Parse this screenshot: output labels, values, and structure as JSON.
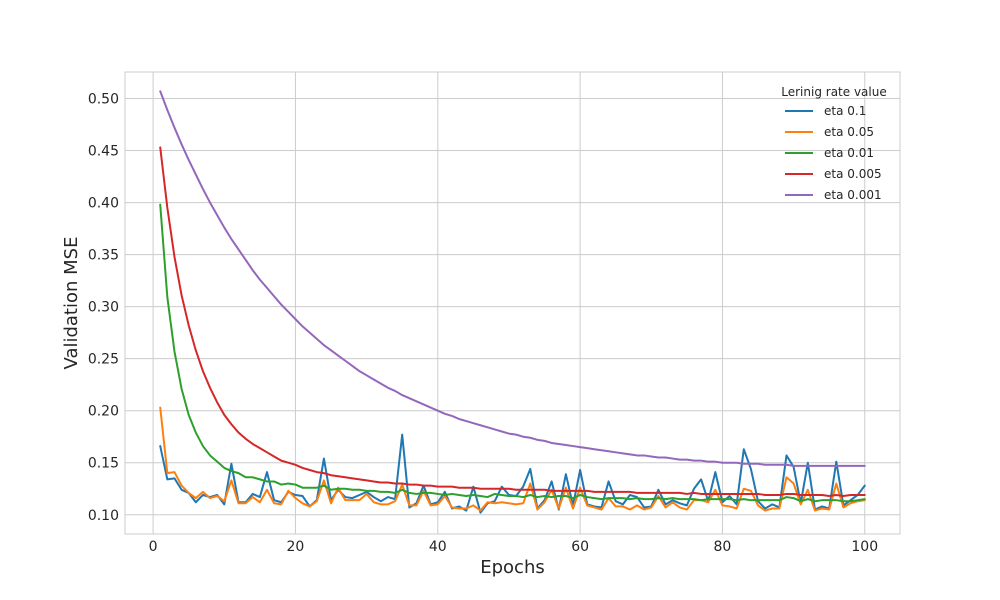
{
  "chart_data": {
    "type": "line",
    "title": "",
    "xlabel": "Epochs",
    "ylabel": "Validation MSE",
    "xlim": [
      -3.95,
      104.95
    ],
    "ylim": [
      0.0815,
      0.5255
    ],
    "x_ticks": [
      0,
      20,
      40,
      60,
      80,
      100
    ],
    "y_ticks": [
      0.1,
      0.15,
      0.2,
      0.25,
      0.3,
      0.35,
      0.4,
      0.45,
      0.5
    ],
    "grid": true,
    "legend": {
      "title": "Lerinig rate value",
      "placement": "top-right"
    },
    "series": [
      {
        "name": "eta 0.1",
        "color": "#1f77b4",
        "x": [
          1,
          2,
          3,
          4,
          5,
          6,
          7,
          8,
          9,
          10,
          11,
          12,
          13,
          14,
          15,
          16,
          17,
          18,
          19,
          20,
          21,
          22,
          23,
          24,
          25,
          26,
          27,
          28,
          29,
          30,
          31,
          32,
          33,
          34,
          35,
          36,
          37,
          38,
          39,
          40,
          41,
          42,
          43,
          44,
          45,
          46,
          47,
          48,
          49,
          50,
          51,
          52,
          53,
          54,
          55,
          56,
          57,
          58,
          59,
          60,
          61,
          62,
          63,
          64,
          65,
          66,
          67,
          68,
          69,
          70,
          71,
          72,
          73,
          74,
          75,
          76,
          77,
          78,
          79,
          80,
          81,
          82,
          83,
          84,
          85,
          86,
          87,
          88,
          89,
          90,
          91,
          92,
          93,
          94,
          95,
          96,
          97,
          98,
          99,
          100
        ],
        "y": [
          0.166,
          0.134,
          0.135,
          0.124,
          0.121,
          0.112,
          0.119,
          0.117,
          0.119,
          0.11,
          0.149,
          0.112,
          0.112,
          0.12,
          0.117,
          0.141,
          0.114,
          0.112,
          0.122,
          0.119,
          0.118,
          0.108,
          0.114,
          0.154,
          0.114,
          0.124,
          0.117,
          0.116,
          0.119,
          0.122,
          0.117,
          0.113,
          0.117,
          0.115,
          0.177,
          0.107,
          0.111,
          0.128,
          0.11,
          0.112,
          0.122,
          0.106,
          0.108,
          0.104,
          0.127,
          0.102,
          0.111,
          0.113,
          0.127,
          0.119,
          0.118,
          0.127,
          0.144,
          0.106,
          0.114,
          0.132,
          0.105,
          0.139,
          0.109,
          0.143,
          0.11,
          0.108,
          0.107,
          0.132,
          0.113,
          0.11,
          0.119,
          0.117,
          0.107,
          0.108,
          0.124,
          0.11,
          0.114,
          0.111,
          0.109,
          0.125,
          0.134,
          0.113,
          0.141,
          0.112,
          0.118,
          0.11,
          0.163,
          0.144,
          0.113,
          0.106,
          0.11,
          0.107,
          0.157,
          0.146,
          0.111,
          0.15,
          0.105,
          0.108,
          0.106,
          0.151,
          0.109,
          0.114,
          0.119,
          0.128
        ]
      },
      {
        "name": "eta 0.05",
        "color": "#ff7f0e",
        "x": [
          1,
          2,
          3,
          4,
          5,
          6,
          7,
          8,
          9,
          10,
          11,
          12,
          13,
          14,
          15,
          16,
          17,
          18,
          19,
          20,
          21,
          22,
          23,
          24,
          25,
          26,
          27,
          28,
          29,
          30,
          31,
          32,
          33,
          34,
          35,
          36,
          37,
          38,
          39,
          40,
          41,
          42,
          43,
          44,
          45,
          46,
          47,
          48,
          49,
          50,
          51,
          52,
          53,
          54,
          55,
          56,
          57,
          58,
          59,
          60,
          61,
          62,
          63,
          64,
          65,
          66,
          67,
          68,
          69,
          70,
          71,
          72,
          73,
          74,
          75,
          76,
          77,
          78,
          79,
          80,
          81,
          82,
          83,
          84,
          85,
          86,
          87,
          88,
          89,
          90,
          91,
          92,
          93,
          94,
          95,
          96,
          97,
          98,
          99,
          100
        ],
        "y": [
          0.203,
          0.14,
          0.141,
          0.128,
          0.121,
          0.116,
          0.122,
          0.116,
          0.118,
          0.113,
          0.133,
          0.111,
          0.111,
          0.117,
          0.112,
          0.124,
          0.111,
          0.11,
          0.123,
          0.116,
          0.111,
          0.108,
          0.113,
          0.133,
          0.111,
          0.126,
          0.114,
          0.114,
          0.114,
          0.12,
          0.112,
          0.11,
          0.11,
          0.113,
          0.129,
          0.109,
          0.109,
          0.123,
          0.109,
          0.11,
          0.118,
          0.107,
          0.106,
          0.106,
          0.109,
          0.104,
          0.112,
          0.111,
          0.112,
          0.111,
          0.11,
          0.111,
          0.13,
          0.105,
          0.112,
          0.124,
          0.106,
          0.126,
          0.106,
          0.126,
          0.109,
          0.107,
          0.105,
          0.116,
          0.108,
          0.108,
          0.105,
          0.109,
          0.105,
          0.107,
          0.118,
          0.107,
          0.112,
          0.107,
          0.105,
          0.114,
          0.114,
          0.112,
          0.124,
          0.109,
          0.108,
          0.106,
          0.125,
          0.123,
          0.109,
          0.104,
          0.106,
          0.106,
          0.136,
          0.13,
          0.11,
          0.124,
          0.104,
          0.106,
          0.105,
          0.13,
          0.107,
          0.111,
          0.113,
          0.114
        ]
      },
      {
        "name": "eta 0.01",
        "color": "#2ca02c",
        "x": [
          1,
          2,
          3,
          4,
          5,
          6,
          7,
          8,
          9,
          10,
          11,
          12,
          13,
          14,
          15,
          16,
          17,
          18,
          19,
          20,
          21,
          22,
          23,
          24,
          25,
          26,
          27,
          28,
          29,
          30,
          31,
          32,
          33,
          34,
          35,
          36,
          37,
          38,
          39,
          40,
          41,
          42,
          43,
          44,
          45,
          46,
          47,
          48,
          49,
          50,
          51,
          52,
          53,
          54,
          55,
          56,
          57,
          58,
          59,
          60,
          61,
          62,
          63,
          64,
          65,
          66,
          67,
          68,
          69,
          70,
          71,
          72,
          73,
          74,
          75,
          76,
          77,
          78,
          79,
          80,
          81,
          82,
          83,
          84,
          85,
          86,
          87,
          88,
          89,
          90,
          91,
          92,
          93,
          94,
          95,
          96,
          97,
          98,
          99,
          100
        ],
        "y": [
          0.398,
          0.309,
          0.257,
          0.221,
          0.196,
          0.179,
          0.166,
          0.157,
          0.151,
          0.145,
          0.142,
          0.14,
          0.136,
          0.136,
          0.134,
          0.132,
          0.132,
          0.129,
          0.13,
          0.129,
          0.126,
          0.126,
          0.126,
          0.128,
          0.124,
          0.125,
          0.125,
          0.124,
          0.124,
          0.123,
          0.123,
          0.122,
          0.122,
          0.121,
          0.124,
          0.121,
          0.12,
          0.121,
          0.121,
          0.12,
          0.119,
          0.12,
          0.119,
          0.118,
          0.119,
          0.118,
          0.117,
          0.12,
          0.119,
          0.118,
          0.118,
          0.117,
          0.119,
          0.117,
          0.118,
          0.117,
          0.118,
          0.118,
          0.116,
          0.119,
          0.117,
          0.116,
          0.115,
          0.116,
          0.116,
          0.116,
          0.115,
          0.116,
          0.115,
          0.115,
          0.116,
          0.115,
          0.116,
          0.115,
          0.115,
          0.115,
          0.114,
          0.115,
          0.115,
          0.115,
          0.115,
          0.114,
          0.115,
          0.114,
          0.114,
          0.114,
          0.114,
          0.114,
          0.117,
          0.116,
          0.113,
          0.115,
          0.113,
          0.114,
          0.114,
          0.114,
          0.113,
          0.113,
          0.114,
          0.115
        ]
      },
      {
        "name": "eta 0.005",
        "color": "#d62728",
        "x": [
          1,
          2,
          3,
          4,
          5,
          6,
          7,
          8,
          9,
          10,
          11,
          12,
          13,
          14,
          15,
          16,
          17,
          18,
          19,
          20,
          21,
          22,
          23,
          24,
          25,
          26,
          27,
          28,
          29,
          30,
          31,
          32,
          33,
          34,
          35,
          36,
          37,
          38,
          39,
          40,
          41,
          42,
          43,
          44,
          45,
          46,
          47,
          48,
          49,
          50,
          51,
          52,
          53,
          54,
          55,
          56,
          57,
          58,
          59,
          60,
          61,
          62,
          63,
          64,
          65,
          66,
          67,
          68,
          69,
          70,
          71,
          72,
          73,
          74,
          75,
          76,
          77,
          78,
          79,
          80,
          81,
          82,
          83,
          84,
          85,
          86,
          87,
          88,
          89,
          90,
          91,
          92,
          93,
          94,
          95,
          96,
          97,
          98,
          99,
          100
        ],
        "y": [
          0.453,
          0.395,
          0.348,
          0.311,
          0.282,
          0.258,
          0.238,
          0.222,
          0.208,
          0.196,
          0.187,
          0.179,
          0.173,
          0.168,
          0.164,
          0.16,
          0.156,
          0.152,
          0.15,
          0.148,
          0.145,
          0.143,
          0.141,
          0.14,
          0.138,
          0.137,
          0.136,
          0.135,
          0.134,
          0.133,
          0.132,
          0.131,
          0.131,
          0.13,
          0.13,
          0.129,
          0.129,
          0.128,
          0.128,
          0.127,
          0.127,
          0.127,
          0.126,
          0.126,
          0.126,
          0.125,
          0.125,
          0.125,
          0.125,
          0.125,
          0.124,
          0.124,
          0.124,
          0.124,
          0.124,
          0.123,
          0.123,
          0.123,
          0.123,
          0.123,
          0.123,
          0.122,
          0.122,
          0.122,
          0.122,
          0.122,
          0.122,
          0.121,
          0.121,
          0.121,
          0.121,
          0.121,
          0.121,
          0.121,
          0.12,
          0.121,
          0.12,
          0.12,
          0.12,
          0.12,
          0.12,
          0.12,
          0.12,
          0.12,
          0.12,
          0.119,
          0.119,
          0.119,
          0.12,
          0.12,
          0.119,
          0.119,
          0.119,
          0.119,
          0.118,
          0.119,
          0.118,
          0.119,
          0.119,
          0.119
        ]
      },
      {
        "name": "eta 0.001",
        "color": "#9467bd",
        "x": [
          1,
          2,
          3,
          4,
          5,
          6,
          7,
          8,
          9,
          10,
          11,
          12,
          13,
          14,
          15,
          16,
          17,
          18,
          19,
          20,
          21,
          22,
          23,
          24,
          25,
          26,
          27,
          28,
          29,
          30,
          31,
          32,
          33,
          34,
          35,
          36,
          37,
          38,
          39,
          40,
          41,
          42,
          43,
          44,
          45,
          46,
          47,
          48,
          49,
          50,
          51,
          52,
          53,
          54,
          55,
          56,
          57,
          58,
          59,
          60,
          61,
          62,
          63,
          64,
          65,
          66,
          67,
          68,
          69,
          70,
          71,
          72,
          73,
          74,
          75,
          76,
          77,
          78,
          79,
          80,
          81,
          82,
          83,
          84,
          85,
          86,
          87,
          88,
          89,
          90,
          91,
          92,
          93,
          94,
          95,
          96,
          97,
          98,
          99,
          100
        ],
        "y": [
          0.507,
          0.489,
          0.472,
          0.456,
          0.441,
          0.427,
          0.413,
          0.4,
          0.388,
          0.376,
          0.365,
          0.355,
          0.345,
          0.335,
          0.326,
          0.318,
          0.31,
          0.302,
          0.295,
          0.288,
          0.281,
          0.275,
          0.269,
          0.263,
          0.258,
          0.253,
          0.248,
          0.243,
          0.238,
          0.234,
          0.23,
          0.226,
          0.222,
          0.219,
          0.215,
          0.212,
          0.209,
          0.206,
          0.203,
          0.2,
          0.197,
          0.195,
          0.192,
          0.19,
          0.188,
          0.186,
          0.184,
          0.182,
          0.18,
          0.178,
          0.177,
          0.175,
          0.174,
          0.172,
          0.171,
          0.169,
          0.168,
          0.167,
          0.166,
          0.165,
          0.164,
          0.163,
          0.162,
          0.161,
          0.16,
          0.159,
          0.158,
          0.157,
          0.157,
          0.156,
          0.155,
          0.155,
          0.154,
          0.153,
          0.153,
          0.152,
          0.152,
          0.151,
          0.151,
          0.15,
          0.15,
          0.15,
          0.149,
          0.149,
          0.149,
          0.148,
          0.148,
          0.148,
          0.148,
          0.147,
          0.147,
          0.147,
          0.147,
          0.147,
          0.147,
          0.147,
          0.147,
          0.147,
          0.147,
          0.147
        ]
      }
    ]
  }
}
